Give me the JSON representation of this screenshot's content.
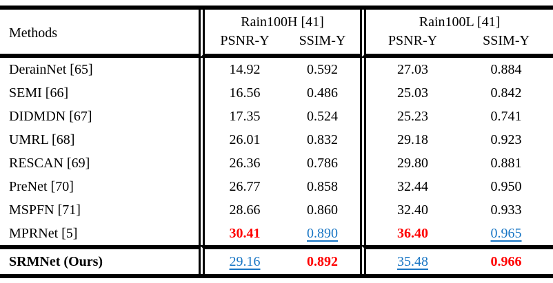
{
  "colors": {
    "best": "#ff0000",
    "second_best": "#1775c4",
    "text": "#000000",
    "background": "#ffffff"
  },
  "table": {
    "corner_header": "Methods",
    "groups": [
      {
        "label": "Rain100H [41]",
        "columns": [
          "PSNR-Y",
          "SSIM-Y"
        ]
      },
      {
        "label": "Rain100L [41]",
        "columns": [
          "PSNR-Y",
          "SSIM-Y"
        ]
      }
    ],
    "rows": [
      {
        "method": "DerainNet [65]",
        "values": [
          "14.92",
          "0.592",
          "27.03",
          "0.884"
        ],
        "emphasis": [
          "none",
          "none",
          "none",
          "none"
        ]
      },
      {
        "method": "SEMI [66]",
        "values": [
          "16.56",
          "0.486",
          "25.03",
          "0.842"
        ],
        "emphasis": [
          "none",
          "none",
          "none",
          "none"
        ]
      },
      {
        "method": "DIDMDN [67]",
        "values": [
          "17.35",
          "0.524",
          "25.23",
          "0.741"
        ],
        "emphasis": [
          "none",
          "none",
          "none",
          "none"
        ]
      },
      {
        "method": "UMRL [68]",
        "values": [
          "26.01",
          "0.832",
          "29.18",
          "0.923"
        ],
        "emphasis": [
          "none",
          "none",
          "none",
          "none"
        ]
      },
      {
        "method": "RESCAN [69]",
        "values": [
          "26.36",
          "0.786",
          "29.80",
          "0.881"
        ],
        "emphasis": [
          "none",
          "none",
          "none",
          "none"
        ]
      },
      {
        "method": "PreNet [70]",
        "values": [
          "26.77",
          "0.858",
          "32.44",
          "0.950"
        ],
        "emphasis": [
          "none",
          "none",
          "none",
          "none"
        ]
      },
      {
        "method": "MSPFN [71]",
        "values": [
          "28.66",
          "0.860",
          "32.40",
          "0.933"
        ],
        "emphasis": [
          "none",
          "none",
          "none",
          "none"
        ]
      },
      {
        "method": "MPRNet [5]",
        "values": [
          "30.41",
          "0.890",
          "36.40",
          "0.965"
        ],
        "emphasis": [
          "best",
          "second",
          "best",
          "second"
        ]
      },
      {
        "method": "SRMNet (Ours)",
        "values": [
          "29.16",
          "0.892",
          "35.48",
          "0.966"
        ],
        "emphasis": [
          "second",
          "best",
          "second",
          "best"
        ],
        "bold_method": true
      }
    ]
  }
}
